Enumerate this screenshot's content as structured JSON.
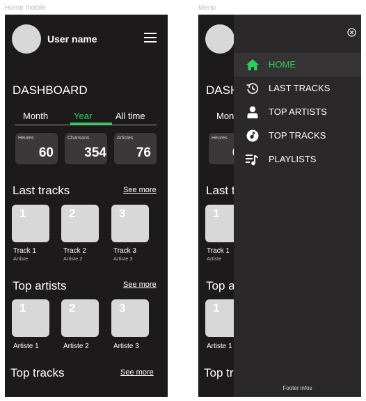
{
  "frames": {
    "left_label": "Home mobile",
    "right_label": "Menu"
  },
  "header": {
    "username": "User name"
  },
  "dashboard": {
    "title": "DASHBOARD",
    "tabs": [
      {
        "label": "Month",
        "active": false
      },
      {
        "label": "Year",
        "active": true
      },
      {
        "label": "All time",
        "active": false
      }
    ],
    "stats": [
      {
        "label": "Heures",
        "value": "60"
      },
      {
        "label": "Chansons",
        "value": "354"
      },
      {
        "label": "Artistes",
        "value": "76"
      }
    ]
  },
  "last_tracks": {
    "title": "Last tracks",
    "see_more": "See more",
    "items": [
      {
        "num": "1",
        "title": "Track 1",
        "artist": "Artiste"
      },
      {
        "num": "2",
        "title": "Track 2",
        "artist": "Artiste 2"
      },
      {
        "num": "3",
        "title": "Track 3",
        "artist": "Artiste 3"
      }
    ]
  },
  "top_artists": {
    "title": "Top artists",
    "see_more": "See more",
    "items": [
      {
        "num": "1",
        "title": "Artiste 1"
      },
      {
        "num": "2",
        "title": "Artiste 2"
      },
      {
        "num": "3",
        "title": "Artiste 3"
      }
    ]
  },
  "top_tracks": {
    "title": "Top tracks",
    "see_more": "See more"
  },
  "menu": {
    "items": [
      {
        "label": "HOME",
        "icon": "home-icon",
        "active": true
      },
      {
        "label": "LAST TRACKS",
        "icon": "history-icon",
        "active": false
      },
      {
        "label": "TOP ARTISTS",
        "icon": "user-icon",
        "active": false
      },
      {
        "label": "TOP TRACKS",
        "icon": "music-disc-icon",
        "active": false
      },
      {
        "label": "PLAYLISTS",
        "icon": "playlist-icon",
        "active": false
      }
    ],
    "footer": "Footer infos"
  },
  "colors": {
    "accent": "#2ecc5a",
    "background": "#1d1a1b",
    "drawer": "#2a2828"
  }
}
